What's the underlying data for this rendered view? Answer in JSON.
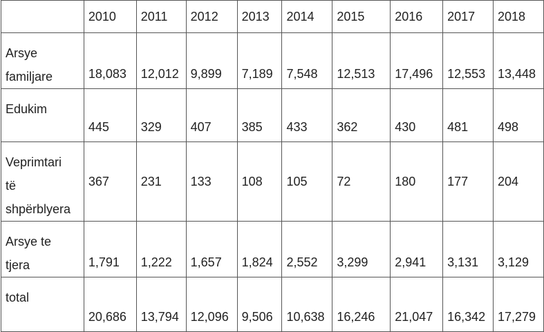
{
  "table": {
    "header": [
      "",
      "2010",
      "2011",
      "2012",
      "2013",
      "2014",
      "2015",
      "2016",
      "2017",
      "2018"
    ],
    "rows": [
      [
        "Arsye familjare",
        "18,083",
        "12,012",
        "9,899",
        "7,189",
        "7,548",
        "12,513",
        "17,496",
        "12,553",
        "13,448"
      ],
      [
        "Edukim",
        "445",
        "329",
        "407",
        "385",
        "433",
        "362",
        "430",
        "481",
        "498"
      ],
      [
        "Veprimtari të shpërblyera",
        "367",
        "231",
        "133",
        "108",
        "105",
        "72",
        "180",
        "177",
        "204"
      ],
      [
        "Arsye te tjera",
        "1,791",
        "1,222",
        "1,657",
        "1,824",
        "2,552",
        "3,299",
        "2,941",
        "3,131",
        "3,129"
      ],
      [
        "total",
        "20,686",
        "13,794",
        "12,096",
        "9,506",
        "10,638",
        "16,246",
        "21,047",
        "16,342",
        "17,279"
      ]
    ]
  }
}
